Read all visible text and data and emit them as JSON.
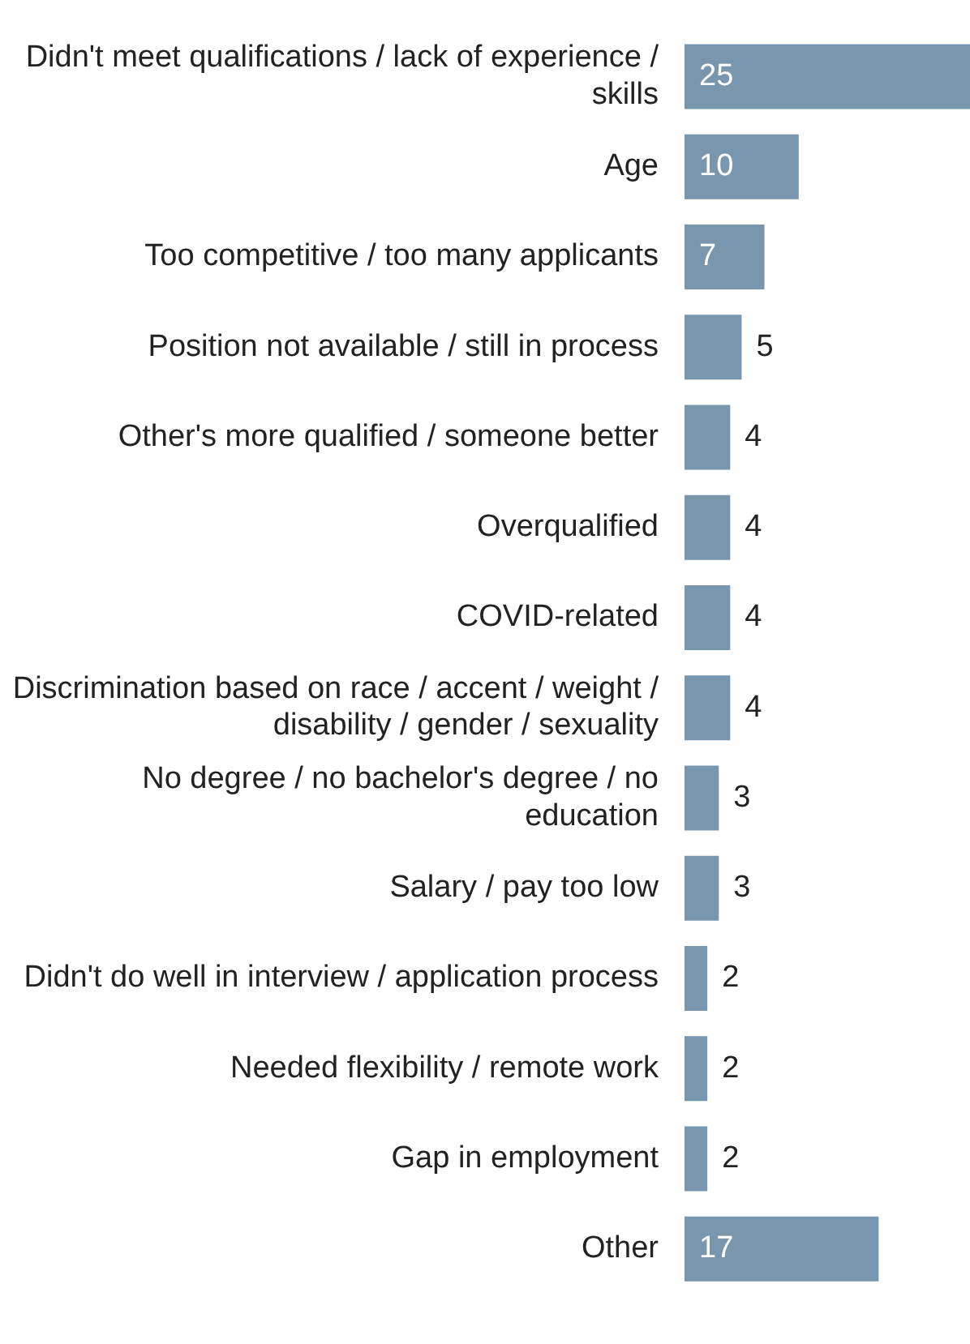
{
  "chart_data": {
    "type": "bar",
    "orientation": "horizontal",
    "categories": [
      "Didn't meet qualifications / lack of experience / skills",
      "Age",
      "Too competitive / too many applicants",
      "Position not available / still in process",
      "Other's more qualified / someone better",
      "Overqualified",
      "COVID-related",
      "Discrimination based on race / accent / weight / disability / gender / sexuality",
      "No degree / no bachelor's degree / no education",
      "Salary / pay too low",
      "Didn't do well in interview / application process",
      "Needed flexibility / remote work",
      "Gap in employment",
      "Other"
    ],
    "values": [
      25,
      10,
      7,
      5,
      4,
      4,
      4,
      4,
      3,
      3,
      2,
      2,
      2,
      17
    ],
    "color": "#7896ad",
    "data_labels": true,
    "grid": false,
    "legend": false,
    "tick_labels": "y"
  }
}
